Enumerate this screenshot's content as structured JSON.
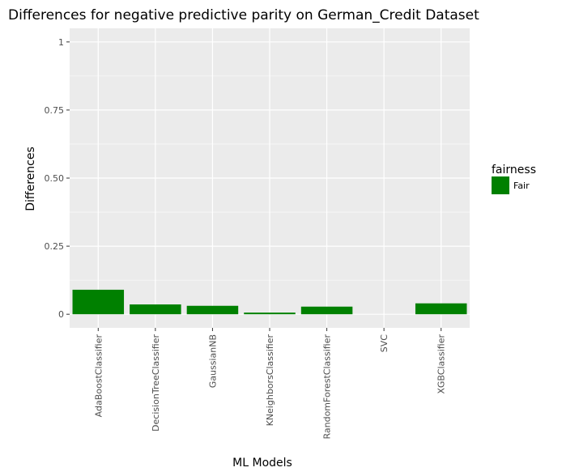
{
  "chart_data": {
    "type": "bar",
    "title": "Differences for negative predictive parity on German_Credit Dataset",
    "xlabel": "ML Models",
    "ylabel": "Differences",
    "categories": [
      "AdaBoostClassifier",
      "DecisionTreeClassifier",
      "GaussianNB",
      "KNeighborsClassifier",
      "RandomForestClassifier",
      "SVC",
      "XGBClassifier"
    ],
    "values": [
      0.09,
      0.036,
      0.031,
      0.006,
      0.028,
      0.0,
      0.04
    ],
    "fill_group": [
      "Fair",
      "Fair",
      "Fair",
      "Fair",
      "Fair",
      "Fair",
      "Fair"
    ],
    "ylim": [
      -0.05,
      1.05
    ],
    "yticks": [
      0,
      0.25,
      0.5,
      0.75,
      1
    ],
    "ytick_labels": [
      "0",
      "0.25",
      "0.50",
      "0.75",
      "1"
    ],
    "grid": true,
    "legend": {
      "title": "fairness",
      "position": "right",
      "entries": [
        {
          "label": "Fair",
          "color": "#008000"
        }
      ]
    },
    "colors": {
      "panel": "#ebebeb",
      "grid": "#ffffff",
      "bar": "#008000"
    }
  }
}
